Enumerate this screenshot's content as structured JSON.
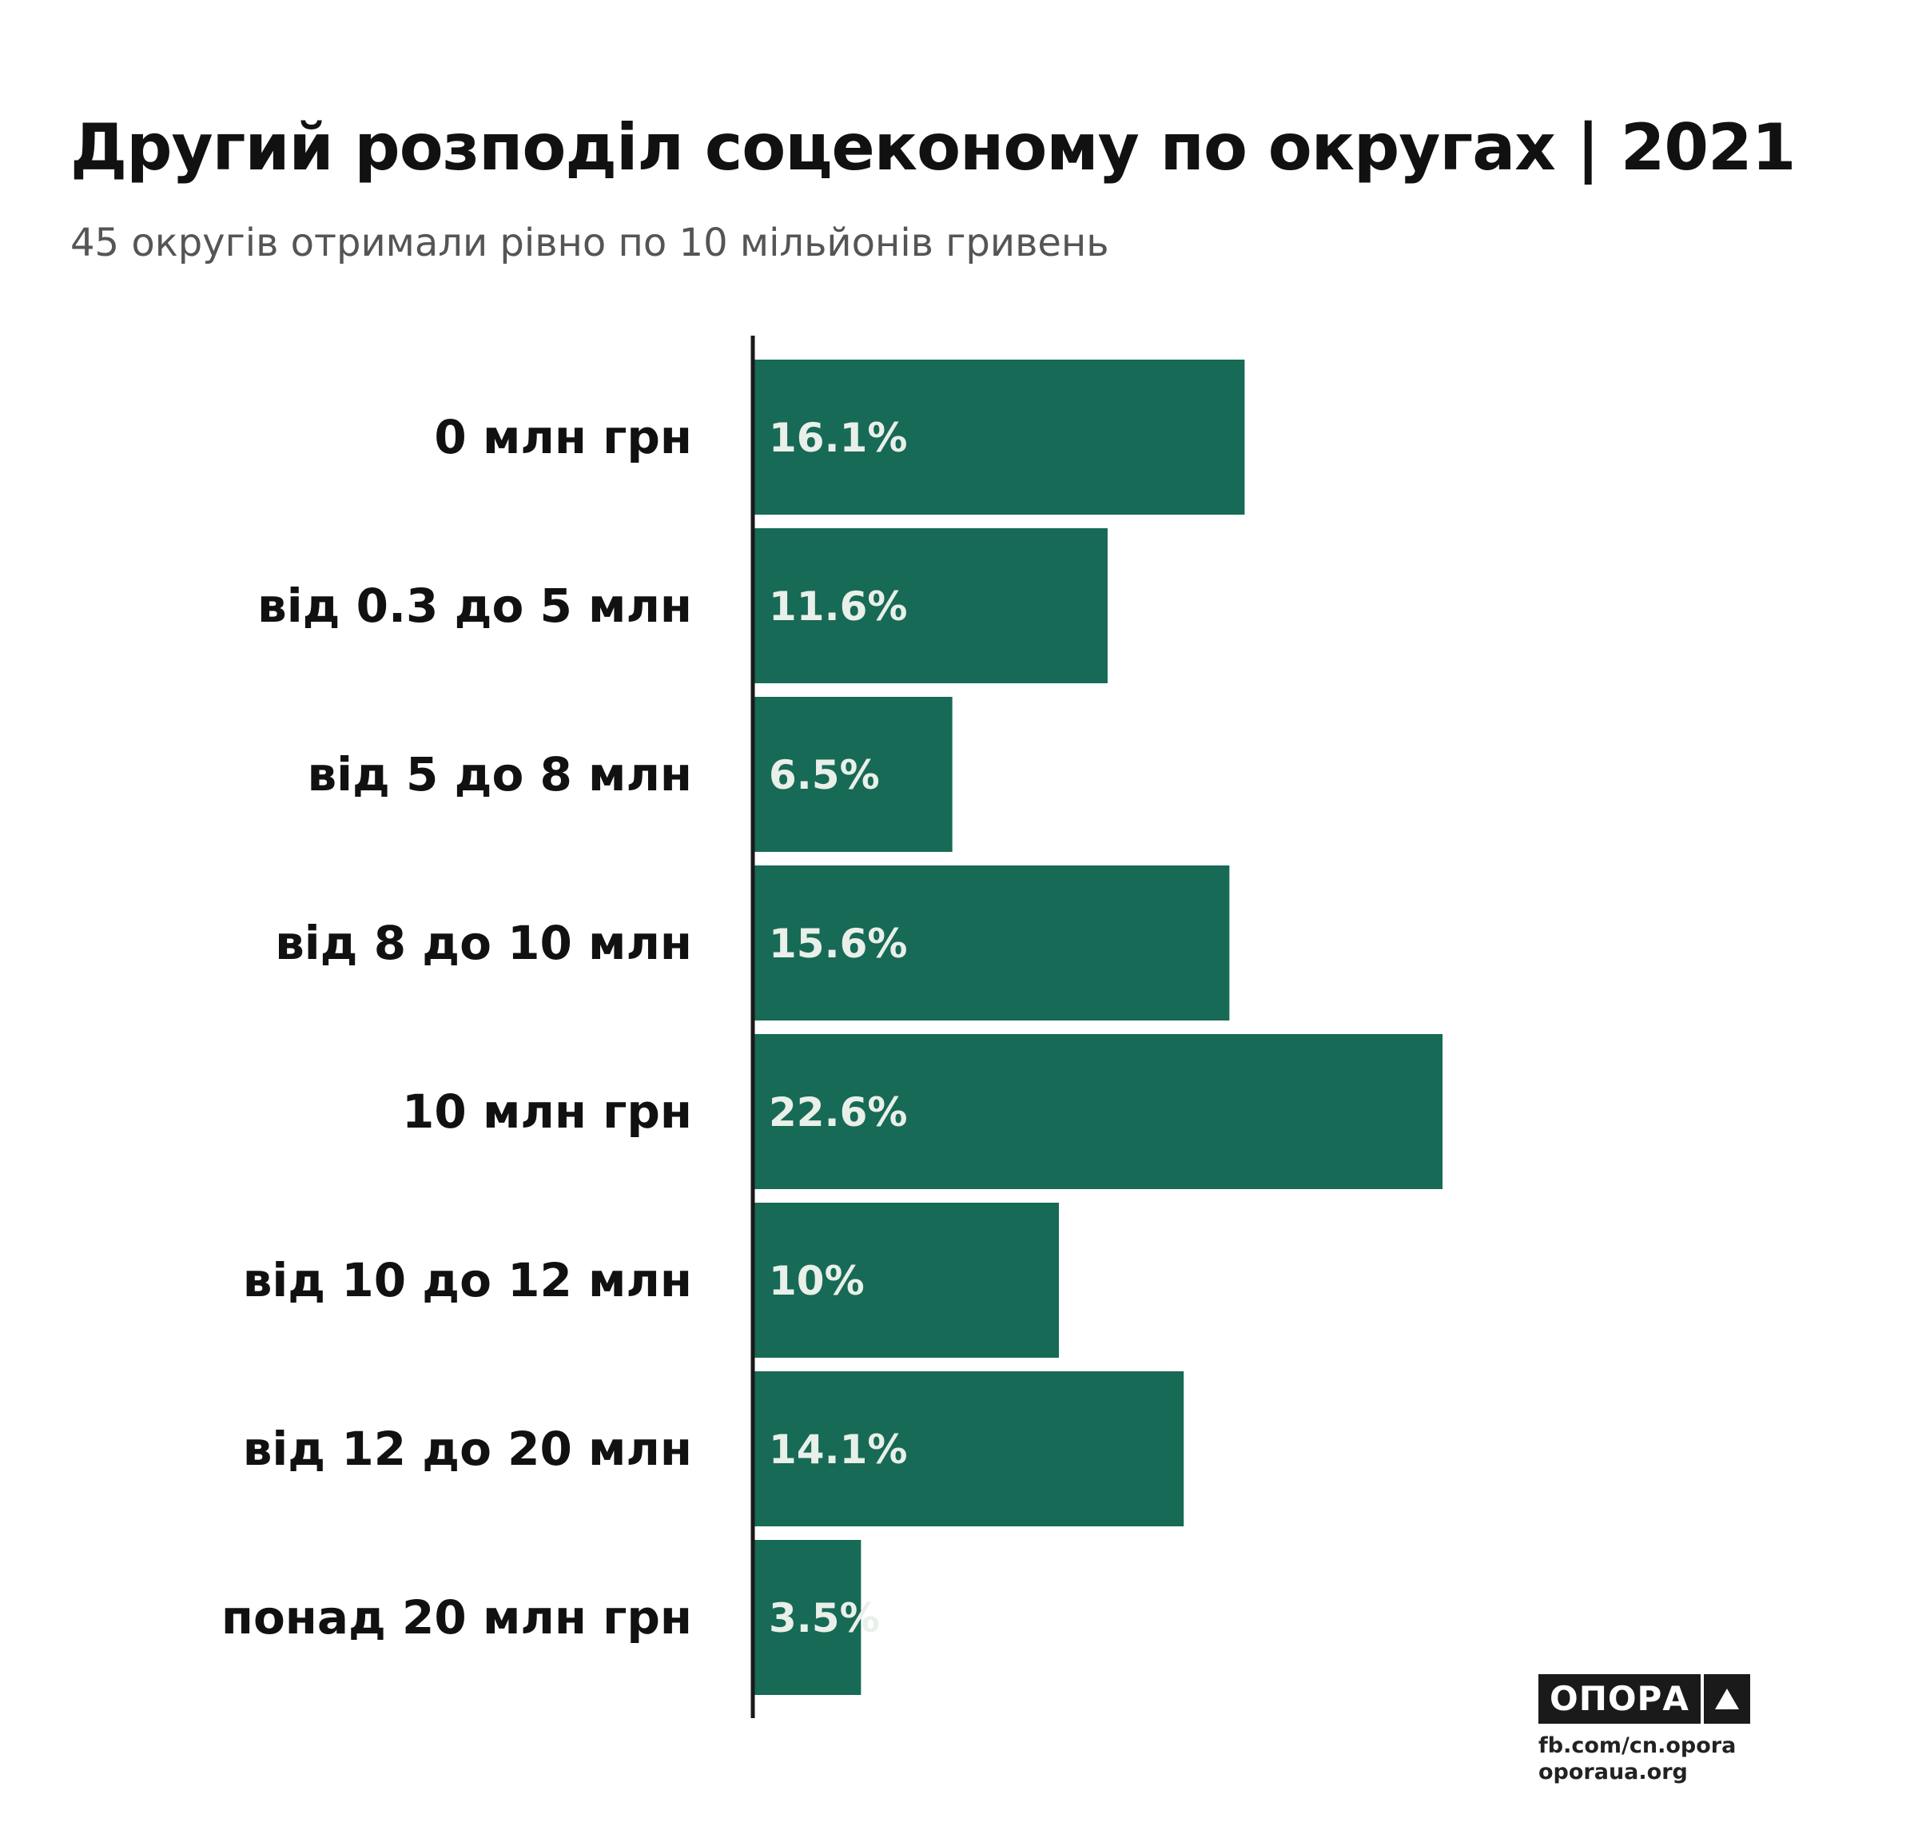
{
  "header": {
    "title": "Другий розподіл соцекономy по округах | 2021",
    "subtitle": "45 округів отримали рівно по 10 мільйонів гривень"
  },
  "colors": {
    "bar": "#176a55",
    "bar_label": "#e9efe9",
    "axis": "#1a1a1a"
  },
  "chart_data": {
    "type": "bar",
    "orientation": "horizontal",
    "categories": [
      "0 млн грн",
      "від 0.3 до 5 млн",
      "від 5 до 8 млн",
      "від 8 до 10 млн",
      "10 млн грн",
      "від 10 до 12 млн",
      "від 12 до 20 млн",
      "понад 20 млн грн"
    ],
    "values": [
      16.1,
      11.6,
      6.5,
      15.6,
      22.6,
      10,
      14.1,
      3.5
    ],
    "value_labels": [
      "16.1%",
      "11.6%",
      "6.5%",
      "15.6%",
      "22.6%",
      "10%",
      "14.1%",
      "3.5%"
    ],
    "title": "Другий розподіл соцекономy по округах | 2021",
    "subtitle": "45 округів отримали рівно по 10 мільйонів гривень",
    "grid": false,
    "legend": "none"
  },
  "branding": {
    "logo_text": "ОПОРА",
    "link1": "fb.com/cn.opora",
    "link2": "oporaua.org"
  }
}
